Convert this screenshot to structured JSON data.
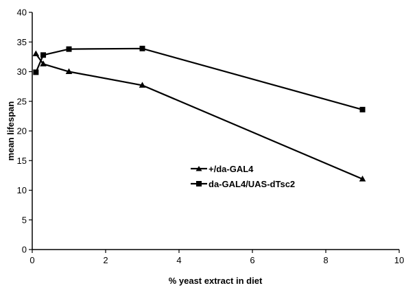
{
  "chart_data": {
    "type": "line",
    "title": "",
    "xlabel": "% yeast extract in diet",
    "ylabel": "mean lifespan",
    "xlim": [
      0,
      10
    ],
    "ylim": [
      0,
      40
    ],
    "x_ticks": [
      0,
      2,
      4,
      6,
      8,
      10
    ],
    "y_ticks": [
      0,
      5,
      10,
      15,
      20,
      25,
      30,
      35,
      40
    ],
    "grid": false,
    "legend_position": "center-right",
    "series": [
      {
        "name": "+/da-GAL4",
        "marker": "triangle",
        "color": "#000000",
        "x": [
          0.1,
          0.3,
          1,
          3,
          9
        ],
        "y": [
          33.0,
          31.3,
          30.0,
          27.7,
          11.9
        ]
      },
      {
        "name": "da-GAL4/UAS-dTsc2",
        "marker": "square",
        "color": "#000000",
        "x": [
          0.1,
          0.3,
          1,
          3,
          9
        ],
        "y": [
          29.9,
          32.8,
          33.8,
          33.9,
          23.6
        ]
      }
    ]
  }
}
